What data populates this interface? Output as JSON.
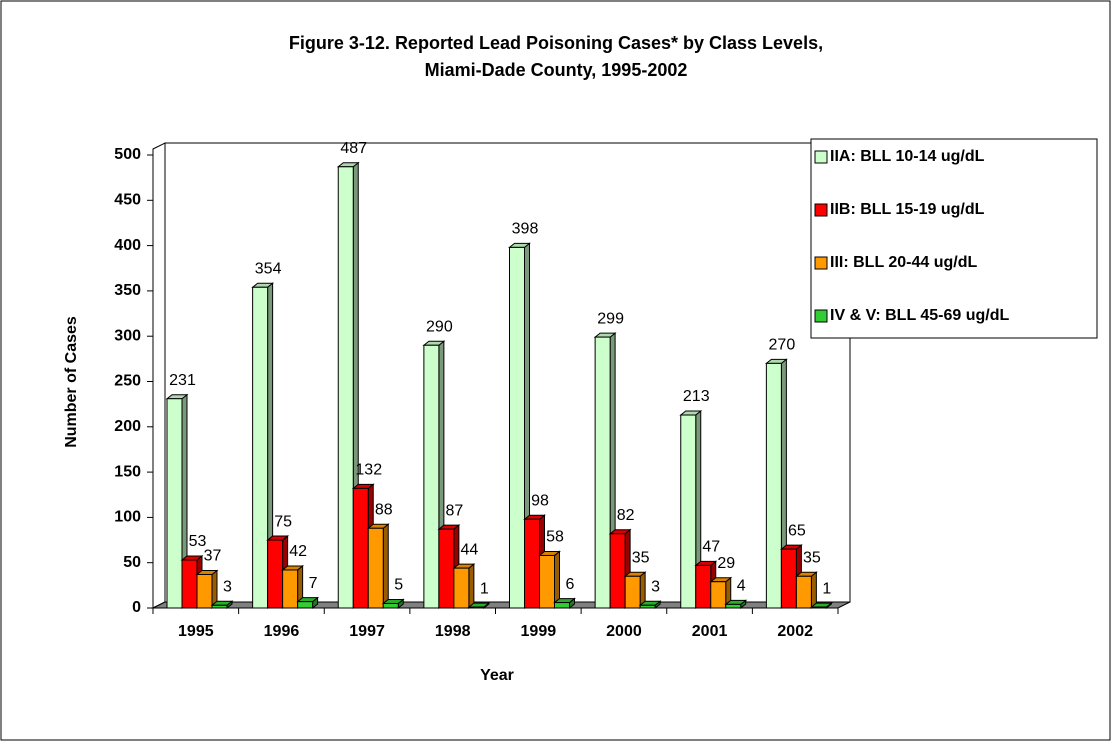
{
  "chart_data": {
    "type": "bar3d",
    "title": [
      "Figure 3-12.   Reported Lead Poisoning Cases* by Class Levels,",
      "Miami-Dade County, 1995-2002"
    ],
    "x_label": "Year",
    "y_label": "Number of Cases",
    "categories": [
      "1995",
      "1996",
      "1997",
      "1998",
      "1999",
      "2000",
      "2001",
      "2002"
    ],
    "series": [
      {
        "name": "IIA: BLL 10-14 ug/dL",
        "color": "#ccffcc",
        "values": [
          231,
          354,
          487,
          290,
          398,
          299,
          213,
          270
        ]
      },
      {
        "name": "IIB: BLL 15-19 ug/dL",
        "color": "#ff0000",
        "values": [
          53,
          75,
          132,
          87,
          98,
          82,
          47,
          65
        ]
      },
      {
        "name": "III:  BLL 20-44 ug/dL",
        "color": "#ff9900",
        "values": [
          37,
          42,
          88,
          44,
          58,
          35,
          29,
          35
        ]
      },
      {
        "name": "IV & V: BLL 45-69 ug/dL",
        "color": "#33cc33",
        "values": [
          3,
          7,
          5,
          1,
          6,
          3,
          4,
          1
        ]
      }
    ],
    "ylim": [
      0,
      500
    ],
    "yticks": [
      0,
      50,
      100,
      150,
      200,
      250,
      300,
      350,
      400,
      450,
      500
    ],
    "legend": "right"
  }
}
